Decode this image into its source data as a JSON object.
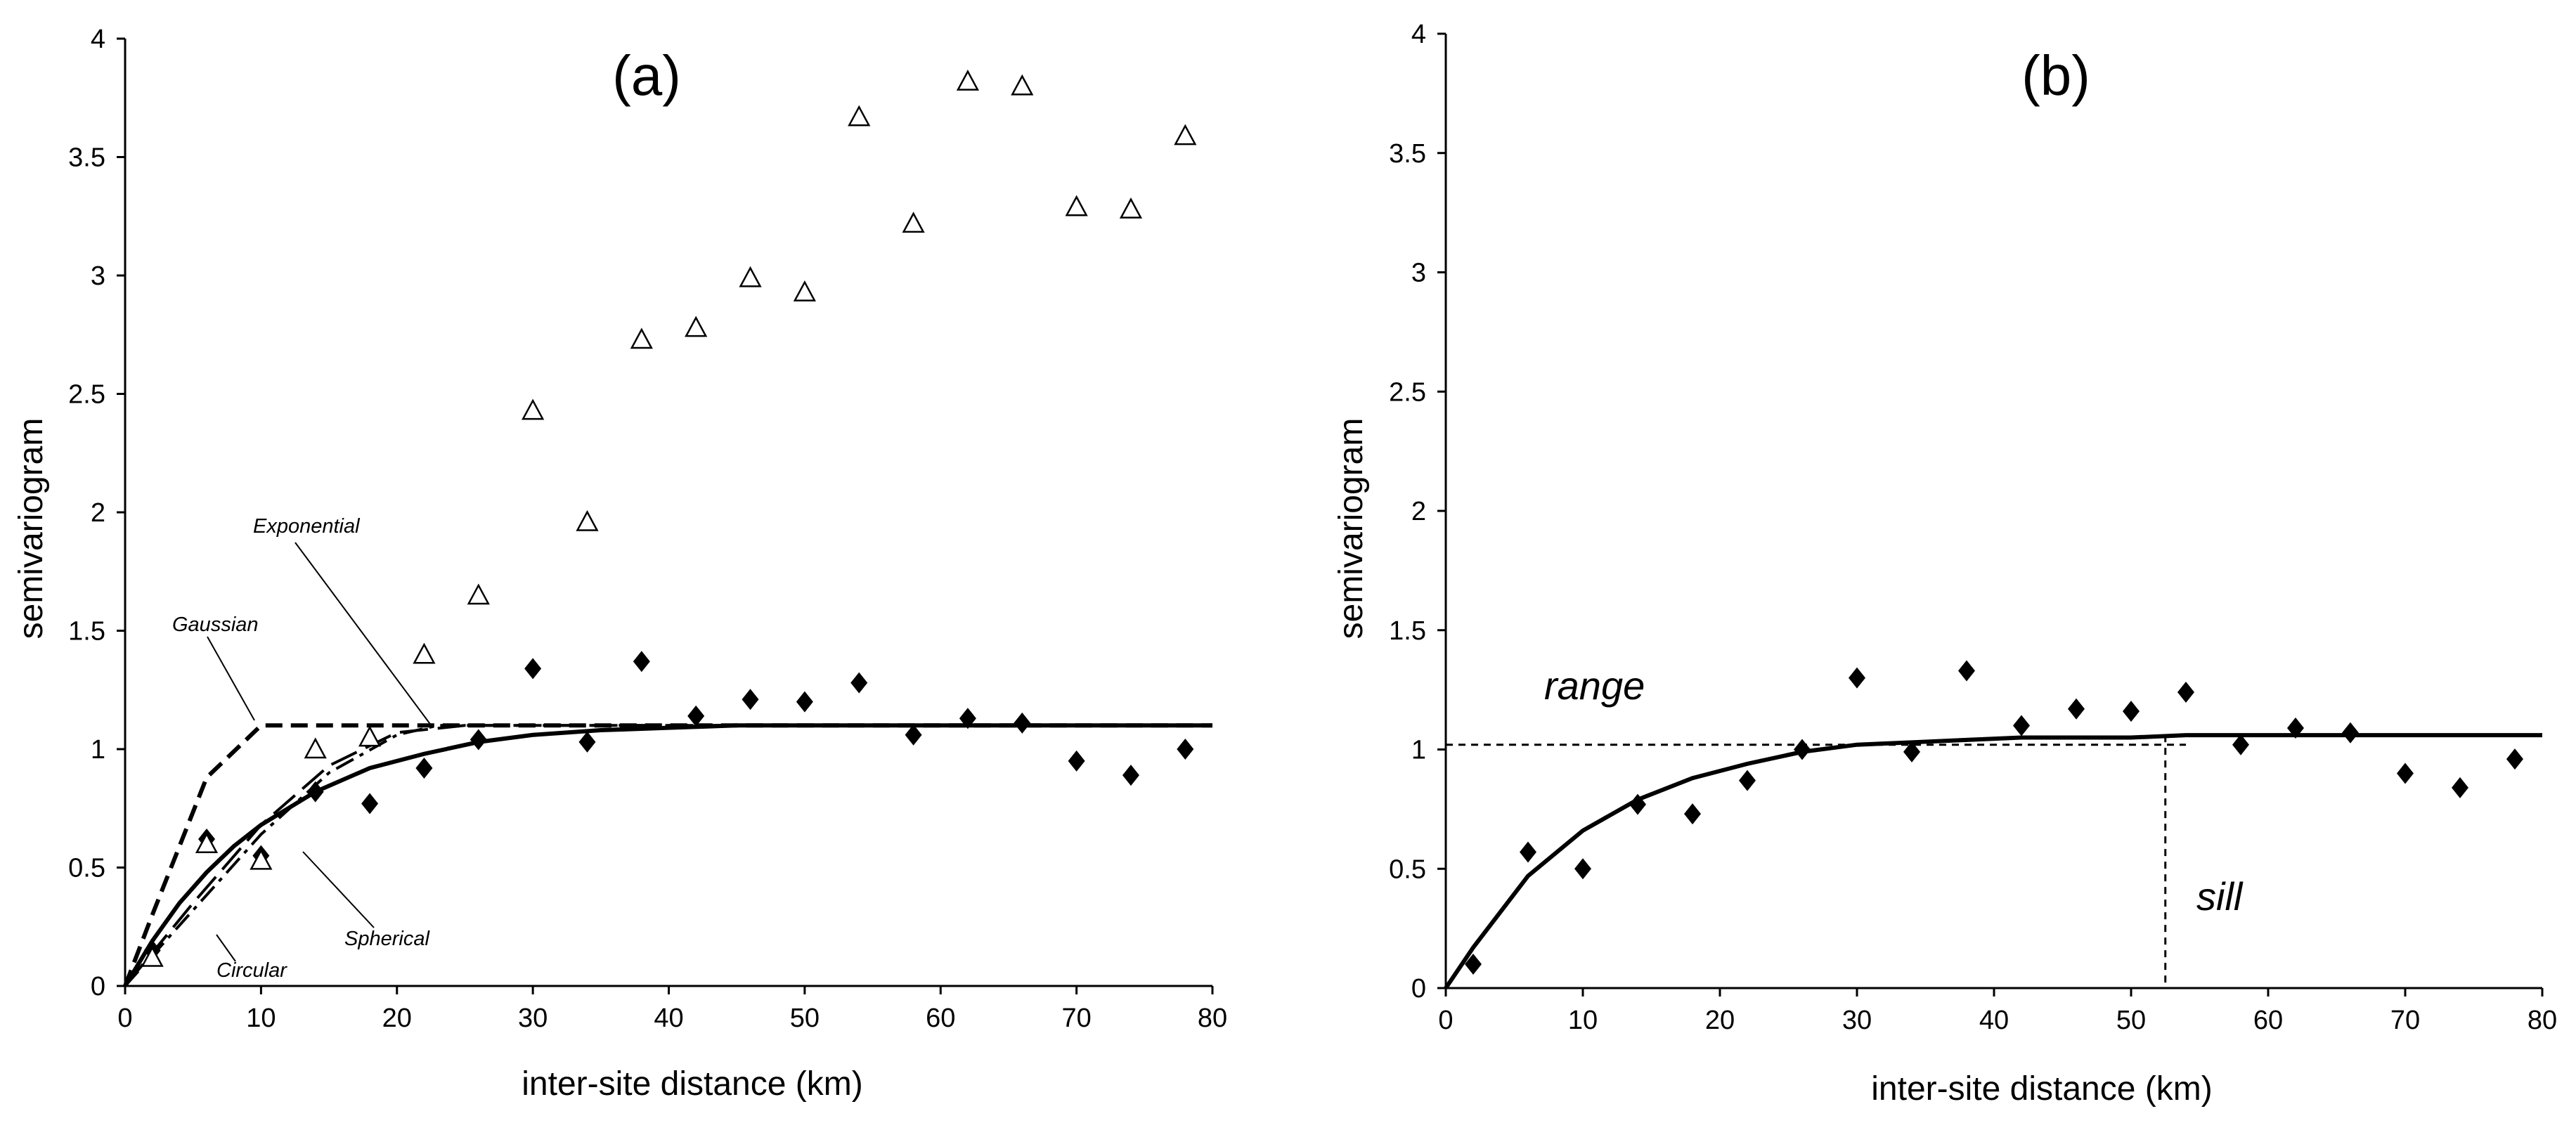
{
  "chart_data": [
    {
      "type": "scatter",
      "panel_label": "(a)",
      "xlabel": "inter-site distance (km)",
      "ylabel": "semivariogram",
      "xlim": [
        0,
        80
      ],
      "ylim": [
        0,
        4
      ],
      "x_ticks": [
        "0",
        "10",
        "20",
        "30",
        "40",
        "50",
        "60",
        "70",
        "80"
      ],
      "y_ticks": [
        "0",
        "0.5",
        "1",
        "1.5",
        "2",
        "2.5",
        "3",
        "3.5",
        "4"
      ],
      "grid": false,
      "series": [
        {
          "name": "diamonds",
          "marker": "diamond",
          "x": [
            2,
            6,
            10,
            14,
            18,
            22,
            26,
            30,
            34,
            38,
            42,
            46,
            50,
            54,
            58,
            62,
            66,
            70,
            74,
            78
          ],
          "y": [
            0.15,
            0.62,
            0.55,
            0.82,
            0.77,
            0.92,
            1.04,
            1.34,
            1.03,
            1.37,
            1.14,
            1.21,
            1.2,
            1.28,
            1.06,
            1.13,
            1.11,
            0.95,
            0.89,
            1.0
          ]
        },
        {
          "name": "triangles",
          "marker": "triangle",
          "x": [
            2,
            6,
            10,
            14,
            18,
            22,
            26,
            30,
            34,
            38,
            42,
            46,
            50,
            54,
            58,
            62,
            66,
            70,
            74,
            78
          ],
          "y": [
            0.12,
            0.6,
            0.53,
            1.0,
            1.05,
            1.4,
            1.65,
            2.43,
            1.96,
            2.73,
            2.78,
            2.99,
            2.93,
            3.67,
            3.22,
            3.82,
            3.8,
            3.29,
            3.28,
            3.59
          ]
        },
        {
          "name": "Exponential",
          "line": "solid",
          "x": [
            0,
            2,
            4,
            6,
            8,
            10,
            14,
            18,
            22,
            26,
            30,
            35,
            40,
            45,
            50,
            55,
            60,
            70,
            80
          ],
          "y": [
            0,
            0.19,
            0.35,
            0.48,
            0.59,
            0.68,
            0.82,
            0.92,
            0.98,
            1.03,
            1.06,
            1.08,
            1.09,
            1.1,
            1.1,
            1.1,
            1.1,
            1.1,
            1.1
          ]
        },
        {
          "name": "Gaussian",
          "line": "dashed",
          "x": [
            0,
            2,
            6,
            10,
            80
          ],
          "y": [
            0,
            0.3,
            0.88,
            1.1,
            1.1
          ]
        },
        {
          "name": "Spherical",
          "line": "long-dash",
          "x": [
            0,
            5,
            10,
            15,
            20,
            25,
            80
          ],
          "y": [
            0,
            0.35,
            0.68,
            0.93,
            1.07,
            1.1,
            1.1
          ]
        },
        {
          "name": "Circular",
          "line": "dash-dot",
          "x": [
            0,
            5,
            10,
            15,
            20,
            23,
            80
          ],
          "y": [
            0,
            0.32,
            0.64,
            0.9,
            1.06,
            1.1,
            1.1
          ]
        }
      ],
      "annotations": [
        "Exponential",
        "Gaussian",
        "Spherical",
        "Circular"
      ]
    },
    {
      "type": "scatter",
      "panel_label": "(b)",
      "xlabel": "inter-site distance (km)",
      "ylabel": "semivariogram",
      "xlim": [
        0,
        80
      ],
      "ylim": [
        0,
        4
      ],
      "x_ticks": [
        "0",
        "10",
        "20",
        "30",
        "40",
        "50",
        "60",
        "70",
        "80"
      ],
      "y_ticks": [
        "0",
        "0.5",
        "1",
        "1.5",
        "2",
        "2.5",
        "3",
        "3.5",
        "4"
      ],
      "grid": false,
      "series": [
        {
          "name": "diamonds",
          "marker": "diamond",
          "x": [
            2,
            6,
            10,
            14,
            18,
            22,
            26,
            30,
            34,
            38,
            42,
            46,
            50,
            54,
            58,
            62,
            66,
            70,
            74,
            78
          ],
          "y": [
            0.1,
            0.57,
            0.5,
            0.77,
            0.73,
            0.87,
            1.0,
            1.3,
            0.99,
            1.33,
            1.1,
            1.17,
            1.16,
            1.24,
            1.02,
            1.09,
            1.07,
            0.9,
            0.84,
            0.96
          ]
        },
        {
          "name": "model",
          "line": "solid",
          "x": [
            0,
            2,
            6,
            10,
            14,
            18,
            22,
            26,
            30,
            34,
            38,
            42,
            46,
            50,
            54,
            60,
            70,
            80
          ],
          "y": [
            0,
            0.17,
            0.47,
            0.66,
            0.79,
            0.88,
            0.94,
            0.99,
            1.02,
            1.03,
            1.04,
            1.05,
            1.05,
            1.05,
            1.06,
            1.06,
            1.06,
            1.06
          ]
        }
      ],
      "reference_lines": {
        "horizontal_y": 1.02,
        "horizontal_x_end": 54,
        "vertical_x": 52.5
      },
      "annotations": [
        "range",
        "sill"
      ]
    }
  ]
}
